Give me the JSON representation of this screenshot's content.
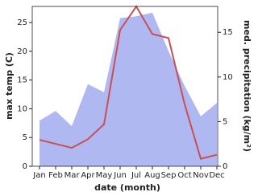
{
  "chart_data": {
    "type": "area-line",
    "x_label": "date (month)",
    "y_label": "max temp (C)",
    "y2_label": "med. precipitation (kg/m²)",
    "categories": [
      "Jan",
      "Feb",
      "Mar",
      "Apr",
      "May",
      "Jun",
      "Jul",
      "Aug",
      "Sep",
      "Oct",
      "Nov",
      "Dec"
    ],
    "series": [
      {
        "name": "med. precipitation",
        "type": "area",
        "axis": "y2",
        "color": "#b0b8f2",
        "values": [
          5.1,
          6.2,
          4.5,
          9.2,
          8.3,
          16.6,
          16.8,
          17.2,
          12.9,
          9.0,
          5.6,
          7.1
        ]
      },
      {
        "name": "max temp",
        "type": "line",
        "color": "#c85050",
        "values": [
          4.6,
          3.9,
          3.2,
          4.7,
          7.3,
          23.7,
          27.8,
          23.0,
          22.3,
          10.8,
          1.3,
          2.0
        ]
      }
    ],
    "ylim": [
      0,
      27.8
    ],
    "yticks": [
      0,
      5,
      10,
      15,
      20,
      25
    ],
    "y2lim": [
      0,
      17.9
    ],
    "y2ticks": [
      0,
      5,
      10,
      15
    ]
  }
}
